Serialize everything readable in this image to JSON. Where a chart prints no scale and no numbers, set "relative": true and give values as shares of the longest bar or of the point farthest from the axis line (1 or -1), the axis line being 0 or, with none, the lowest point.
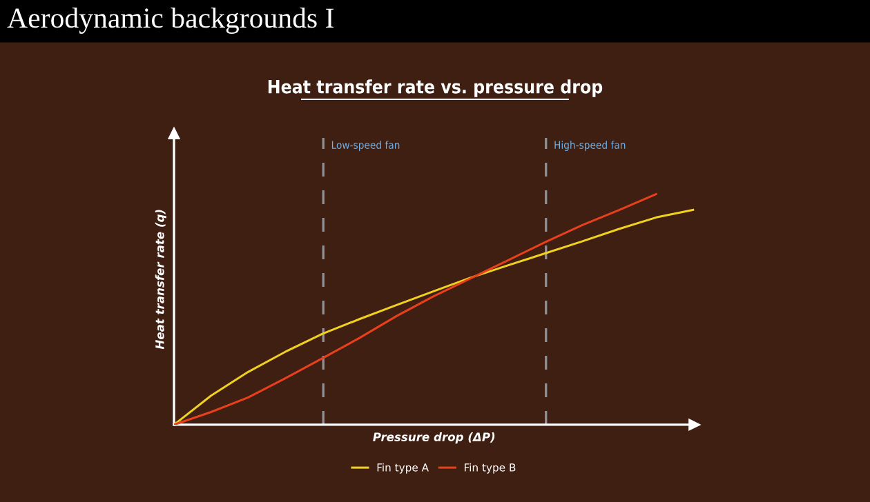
{
  "chart_data": {
    "type": "line",
    "relative": true,
    "title": "Aerodynamic backgrounds I",
    "subtitle": "Heat transfer rate vs. pressure drop",
    "xlabel": "Pressure drop (ΔP)",
    "ylabel": "Heat transfer rate (q)",
    "legend": "bottom",
    "grid": false,
    "marker": "none",
    "line_style": "solid",
    "categories": [
      null,
      null,
      null,
      null,
      null,
      null,
      null,
      null,
      null,
      null,
      null,
      null,
      null,
      null,
      null
    ],
    "series": [
      {
        "name": "Fin type A",
        "color": "#f0d020",
        "values": [
          0,
          0.126,
          0.229,
          0.316,
          0.394,
          0.458,
          0.519,
          0.579,
          0.638,
          0.691,
          0.743,
          0.795,
          0.849,
          0.899,
          0.932
        ]
      },
      {
        "name": "Fin type B",
        "color": "#e8401c",
        "values": [
          0,
          0.055,
          0.118,
          0.201,
          0.288,
          0.376,
          0.471,
          0.557,
          0.635,
          0.713,
          0.791,
          0.865,
          0.931,
          1.0,
          null
        ]
      }
    ],
    "annotations": [
      "Low-speed fan",
      "High-speed fan"
    ]
  }
}
